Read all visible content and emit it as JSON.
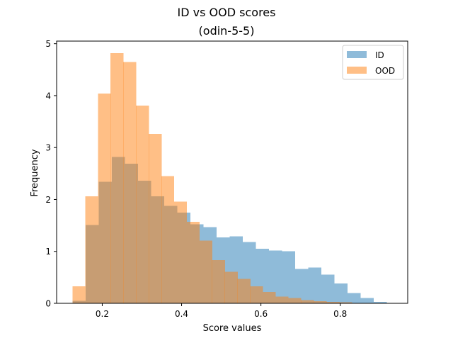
{
  "chart_data": {
    "type": "bar",
    "title": "ID vs OOD scores",
    "subtitle": "(odin-5-5)",
    "xlabel": "Score values",
    "ylabel": "Frequency",
    "xlim": [
      0.085,
      0.97
    ],
    "ylim": [
      0,
      5.05
    ],
    "xticks": [
      0.2,
      0.4,
      0.6,
      0.8
    ],
    "xtick_labels": [
      "0.2",
      "0.4",
      "0.6",
      "0.8"
    ],
    "yticks": [
      0,
      1,
      2,
      3,
      4,
      5
    ],
    "ytick_labels": [
      "0",
      "1",
      "2",
      "3",
      "4",
      "5"
    ],
    "grid": false,
    "legend_position": "top-right",
    "series": [
      {
        "name": "ID",
        "color": "#1f77b4",
        "alpha": 0.5,
        "bin_edges": [
          0.125,
          0.158,
          0.191,
          0.224,
          0.257,
          0.29,
          0.323,
          0.356,
          0.389,
          0.422,
          0.455,
          0.488,
          0.521,
          0.554,
          0.587,
          0.62,
          0.653,
          0.686,
          0.719,
          0.752,
          0.785,
          0.818,
          0.851,
          0.884,
          0.917
        ],
        "values": [
          0.05,
          1.51,
          2.34,
          2.82,
          2.69,
          2.36,
          2.06,
          1.88,
          1.75,
          1.52,
          1.47,
          1.27,
          1.29,
          1.18,
          1.05,
          1.02,
          1.0,
          0.66,
          0.69,
          0.55,
          0.38,
          0.2,
          0.1,
          0.03
        ]
      },
      {
        "name": "OOD",
        "color": "#ff7f0e",
        "alpha": 0.5,
        "bin_edges": [
          0.125,
          0.157,
          0.189,
          0.221,
          0.253,
          0.285,
          0.317,
          0.349,
          0.381,
          0.413,
          0.445,
          0.477,
          0.509,
          0.541,
          0.573,
          0.605,
          0.637,
          0.669,
          0.701,
          0.733,
          0.765,
          0.797,
          0.829,
          0.861,
          0.893,
          0.925,
          0.957
        ],
        "values": [
          0.33,
          2.06,
          4.04,
          4.82,
          4.65,
          3.81,
          3.26,
          2.45,
          1.96,
          1.57,
          1.21,
          0.83,
          0.61,
          0.47,
          0.33,
          0.22,
          0.13,
          0.1,
          0.06,
          0.04,
          0.03,
          0.02,
          0.01,
          0.005,
          0.003,
          0.003
        ]
      }
    ]
  }
}
